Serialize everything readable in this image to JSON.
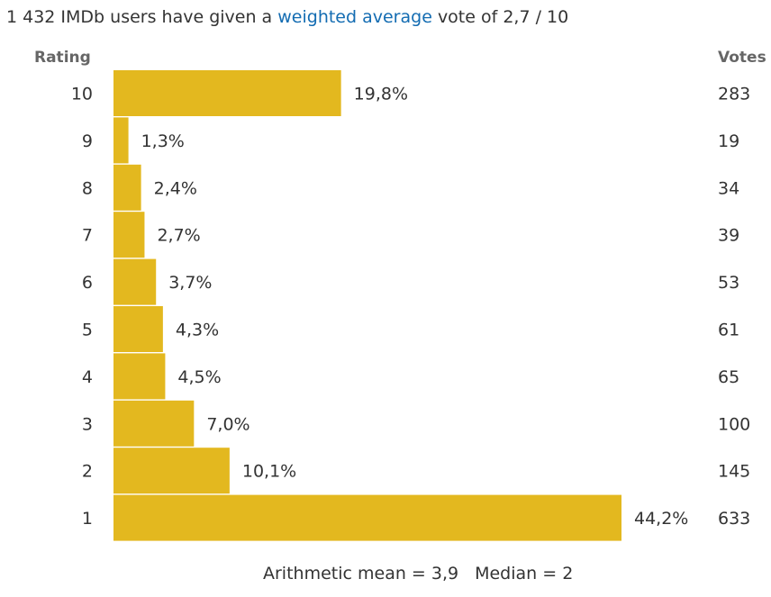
{
  "summary": {
    "prefix": "1 432 IMDb users have given a",
    "link": "weighted average",
    "suffix": "vote of 2,7 / 10"
  },
  "headers": {
    "rating": "Rating",
    "votes": "Votes"
  },
  "footer": {
    "mean": "Arithmetic mean = 3,9",
    "median": "Median = 2"
  },
  "colors": {
    "bar": "#e3b81f",
    "link": "#136cb2",
    "text": "#333333"
  },
  "chart_data": {
    "type": "bar",
    "orientation": "horizontal",
    "title": "",
    "xlabel": "",
    "ylabel": "Rating",
    "categories": [
      "10",
      "9",
      "8",
      "7",
      "6",
      "5",
      "4",
      "3",
      "2",
      "1"
    ],
    "values": [
      19.8,
      1.3,
      2.4,
      2.7,
      3.7,
      4.3,
      4.5,
      7.0,
      10.1,
      44.2
    ],
    "value_labels": [
      "19,8%",
      "1,3%",
      "2,4%",
      "2,7%",
      "3,7%",
      "4,3%",
      "4,5%",
      "7,0%",
      "10,1%",
      "44,2%"
    ],
    "votes": [
      "283",
      "19",
      "34",
      "39",
      "53",
      "61",
      "65",
      "100",
      "145",
      "633"
    ],
    "xlim": [
      0,
      44.2
    ]
  }
}
